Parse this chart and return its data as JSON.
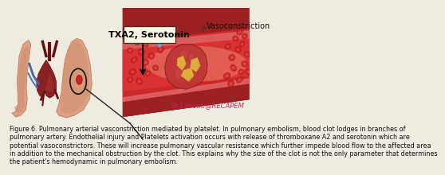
{
  "background_color": "#f0ebe0",
  "title_label": "TXA2, Serotonin",
  "title_label2": "Vasoconstriction",
  "watermark": "Sh.Lahouti@RECAPEM",
  "watermark_color": "#cc2255",
  "caption_line1": "Figure 6. Pulmonary arterial vasconstriction mediated by platelet. In pulmonary embolism, blood clot lodges in branches of",
  "caption_line2": "pulmonary artery. Endothelial injury and Platelets activation occurs with release of thromboxane A2 and serotonin which are",
  "caption_line3": "potential vasoconstrictors. These will increase pulmonary vascular resistance which further impede blood flow to the affected area",
  "caption_line4": "in addition to the mechanical obstruction by the clot. This explains why the size of the clot is not the only parameter that determines",
  "caption_line5": "the patient's hemodynamic in pulmonary embolism.",
  "caption_fontsize": 5.8,
  "caption_color": "#111111",
  "label_fontsize": 8.0,
  "label_color": "#000000",
  "arrow_color": "#111111",
  "lung_left_color": "#d4957a",
  "lung_right_color": "#c8856a",
  "lung_outer_color": "#e0a888",
  "heart_color": "#8b2020",
  "vessel_outer": "#7a1010",
  "vessel_wall": "#c03030",
  "vessel_inner": "#e04040",
  "vessel_light": "#f5d0c0",
  "rbc_color": "#cc2222",
  "rbc_edge": "#aa1111",
  "clot_color": "#cc4444",
  "fibrin_color": "#e8d080"
}
